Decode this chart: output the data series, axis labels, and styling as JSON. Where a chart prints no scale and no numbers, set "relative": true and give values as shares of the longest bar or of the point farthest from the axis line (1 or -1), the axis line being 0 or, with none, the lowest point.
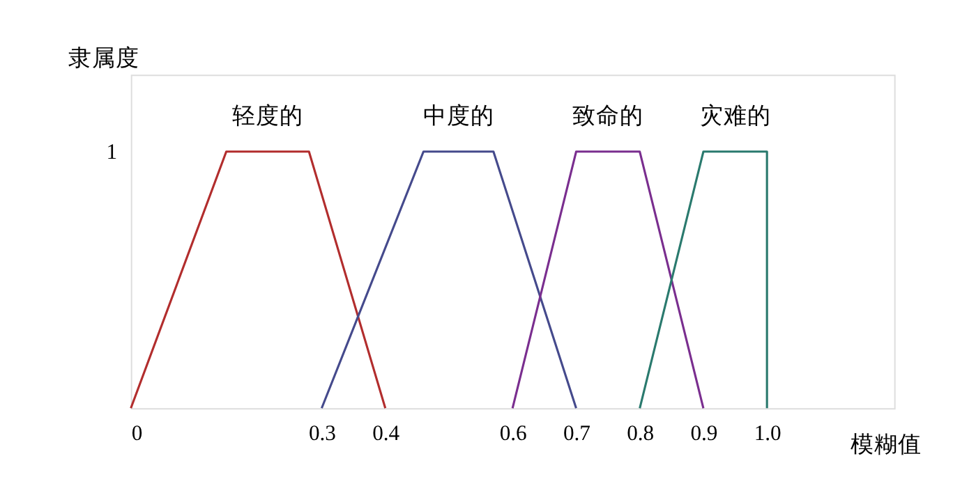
{
  "chart_data": {
    "type": "line",
    "xlabel": "模糊值",
    "ylabel": "隶属度",
    "relative": true,
    "series": [
      {
        "name": "轻度的",
        "color": "#b22d2d",
        "x": [
          0,
          0.15,
          0.28,
          0.4
        ],
        "values": [
          0,
          1,
          1,
          0
        ]
      },
      {
        "name": "中度的",
        "color": "#454a8c",
        "x": [
          0.3,
          0.46,
          0.57,
          0.7
        ],
        "values": [
          0,
          1,
          1,
          0
        ]
      },
      {
        "name": "致命的",
        "color": "#7a2e8f",
        "x": [
          0.6,
          0.7,
          0.8,
          0.9
        ],
        "values": [
          0,
          1,
          1,
          0
        ]
      },
      {
        "name": "灾难的",
        "color": "#2a7a6e",
        "x": [
          0.8,
          0.9,
          1.0,
          1.0
        ],
        "values": [
          0,
          1,
          1,
          0
        ]
      }
    ],
    "annotations": [
      "1"
    ],
    "xlim": [
      0,
      1.2
    ],
    "xticks": [
      0,
      0.3,
      0.4,
      0.6,
      0.7,
      0.8,
      0.9,
      {
        "value": 1.0,
        "label": "1.0"
      }
    ],
    "grid": false,
    "marker": "none",
    "line_style": "solid"
  }
}
